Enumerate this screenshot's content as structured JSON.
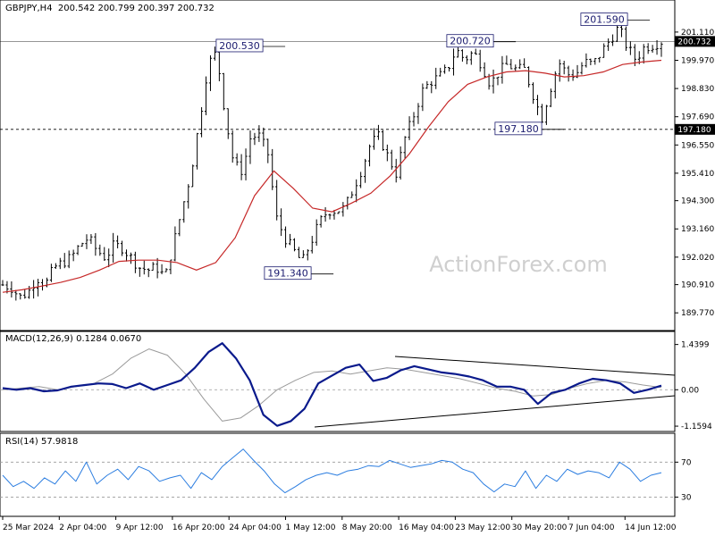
{
  "header": {
    "symbol_info": "GBPJPY,H4  200.542 200.799 200.397 200.732"
  },
  "watermark": "ActionForex.com",
  "colors": {
    "candle": "#000000",
    "ma": "#c62828",
    "macd": "#0a1a8c",
    "signal": "#9a9a9a",
    "rsi": "#2b7de0",
    "hline": "#000000",
    "annotation_text": "#1a1a6e"
  },
  "chart_data": [
    {
      "type": "candlestick",
      "pane": "price",
      "ylim": [
        189.2,
        201.9
      ],
      "yticks": [
        "201.110",
        "199.970",
        "198.830",
        "197.690",
        "196.550",
        "195.410",
        "194.300",
        "193.160",
        "192.020",
        "190.910",
        "189.770"
      ],
      "current_price": "200.732",
      "horizontal_lines": [
        {
          "value": 200.732
        },
        {
          "value": 197.18,
          "label": "197.180"
        }
      ],
      "annotations": [
        {
          "text": "200.530",
          "value": 200.53
        },
        {
          "text": "191.340",
          "value": 191.34
        },
        {
          "text": "200.720",
          "value": 200.72
        },
        {
          "text": "197.180",
          "value": 197.18
        },
        {
          "text": "201.590",
          "value": 201.59
        }
      ],
      "close_path": [
        190.9,
        190.8,
        190.4,
        190.6,
        191.2,
        190.9,
        191.6,
        191.8,
        192.0,
        192.5,
        192.8,
        192.3,
        192.0,
        192.5,
        192.4,
        192.0,
        191.6,
        191.5,
        191.6,
        191.2,
        192.6,
        194.0,
        195.4,
        197.5,
        199.8,
        200.3,
        197.8,
        195.8,
        195.5,
        196.9,
        196.9,
        196.2,
        193.6,
        192.8,
        192.3,
        191.8,
        192.6,
        193.4,
        193.9,
        193.9,
        194.0,
        194.8,
        195.6,
        196.6,
        196.9,
        196.1,
        195.4,
        196.8,
        197.7,
        198.7,
        199.1,
        199.3,
        199.6,
        200.4,
        200.0,
        200.3,
        199.8,
        199.0,
        199.5,
        199.8,
        199.6,
        199.6,
        198.6,
        197.6,
        198.8,
        199.9,
        199.4,
        199.4,
        199.9,
        199.8,
        200.3,
        200.8,
        201.3,
        200.5,
        200.0,
        200.5,
        200.6,
        200.73
      ],
      "ma_series": {
        "values": [
          190.6,
          190.7,
          190.85,
          191.0,
          191.2,
          191.5,
          191.85,
          191.9,
          191.9,
          191.8,
          191.5,
          191.8,
          192.8,
          194.5,
          195.5,
          194.8,
          194.0,
          193.85,
          194.2,
          194.6,
          195.3,
          196.2,
          197.3,
          198.3,
          199.0,
          199.3,
          199.5,
          199.55,
          199.45,
          199.3,
          199.35,
          199.5,
          199.8,
          199.9,
          199.97
        ]
      }
    },
    {
      "type": "line",
      "pane": "macd",
      "title": "MACD(12,26,9) 0.1284 0.0670",
      "ylim": [
        -1.3,
        1.6
      ],
      "yticks": [
        "1.4399",
        "0.00",
        "-1.1594"
      ],
      "series": [
        {
          "values": [
            0.05,
            0.0,
            0.05,
            -0.05,
            -0.02,
            0.1,
            0.15,
            0.2,
            0.18,
            0.05,
            0.2,
            0.0,
            0.15,
            0.3,
            0.7,
            1.2,
            1.48,
            1.0,
            0.3,
            -0.8,
            -1.15,
            -1.0,
            -0.6,
            0.2,
            0.45,
            0.7,
            0.8,
            0.28,
            0.38,
            0.62,
            0.75,
            0.65,
            0.55,
            0.5,
            0.42,
            0.3,
            0.1,
            0.1,
            0.0,
            -0.45,
            -0.1,
            0.0,
            0.2,
            0.35,
            0.3,
            0.2,
            -0.1,
            0.0,
            0.13
          ]
        },
        {
          "values": [
            0.0,
            0.05,
            0.1,
            0.0,
            0.1,
            0.2,
            0.5,
            1.0,
            1.3,
            1.1,
            0.5,
            -0.3,
            -1.0,
            -0.9,
            -0.5,
            0.0,
            0.3,
            0.55,
            0.6,
            0.5,
            0.6,
            0.7,
            0.65,
            0.55,
            0.45,
            0.35,
            0.2,
            0.05,
            -0.05,
            -0.2,
            -0.15,
            0.05,
            0.2,
            0.3,
            0.25,
            0.15,
            0.07
          ]
        }
      ]
    },
    {
      "type": "line",
      "pane": "rsi",
      "title": "RSI(14) 57.9818",
      "ylim": [
        10,
        100
      ],
      "yticks": [
        "70",
        "30"
      ],
      "levels": [
        70,
        30
      ],
      "series": [
        {
          "values": [
            55,
            42,
            48,
            40,
            52,
            45,
            60,
            48,
            70,
            45,
            55,
            62,
            50,
            65,
            60,
            48,
            52,
            55,
            40,
            58,
            50,
            65,
            75,
            85,
            72,
            60,
            45,
            35,
            42,
            50,
            55,
            58,
            55,
            60,
            62,
            66,
            65,
            72,
            68,
            64,
            66,
            68,
            72,
            70,
            62,
            58,
            45,
            36,
            45,
            42,
            60,
            40,
            55,
            48,
            62,
            56,
            60,
            58,
            52,
            70,
            62,
            48,
            55,
            58
          ]
        }
      ]
    }
  ],
  "x_axis": {
    "labels": [
      "25 Mar 2024",
      "2 Apr 04:00",
      "9 Apr 12:00",
      "16 Apr 20:00",
      "24 Apr 04:00",
      "1 May 12:00",
      "8 May 20:00",
      "16 May 04:00",
      "23 May 12:00",
      "30 May 20:00",
      "7 Jun 04:00",
      "14 Jun 12:00"
    ]
  }
}
